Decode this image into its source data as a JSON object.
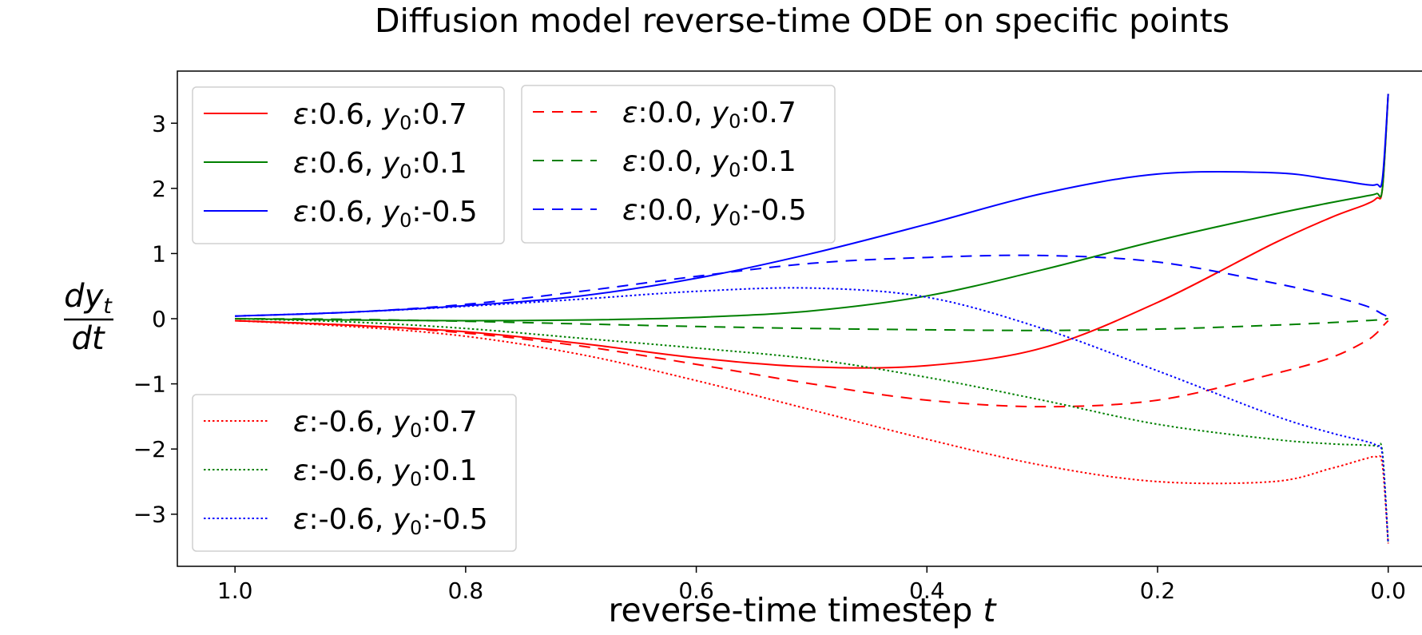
{
  "chart_data": {
    "type": "line",
    "title": "Diffusion model reverse-time ODE on specific points",
    "xlabel": "reverse-time timestep t",
    "ylabel": "dy_t / dt",
    "xlim": [
      1.05,
      -0.03
    ],
    "ylim": [
      -3.8,
      3.8
    ],
    "x_reversed": true,
    "grid": false,
    "xticks": [
      1.0,
      0.8,
      0.6,
      0.4,
      0.2,
      0.0
    ],
    "xtick_labels": [
      "1.0",
      "0.8",
      "0.6",
      "0.4",
      "0.2",
      "0.0"
    ],
    "yticks": [
      3,
      2,
      1,
      0,
      -1,
      -2,
      -3
    ],
    "ytick_labels": [
      "3",
      "2",
      "1",
      "0",
      "−1",
      "−2",
      "−3"
    ],
    "x": [
      1.0,
      0.9,
      0.8,
      0.7,
      0.6,
      0.5,
      0.4,
      0.3,
      0.2,
      0.1,
      0.05,
      0.02,
      0.01,
      0.005,
      0.0
    ],
    "legends": [
      {
        "placement": "upper-left",
        "entries": [
          0,
          1,
          2
        ]
      },
      {
        "placement": "upper-center",
        "entries": [
          3,
          4,
          5
        ]
      },
      {
        "placement": "lower-left",
        "entries": [
          6,
          7,
          8
        ]
      }
    ],
    "series": [
      {
        "name": "ε:0.6, y0:0.7",
        "eps": "0.6",
        "y0": "0.7",
        "color": "#ff0000",
        "linestyle": "solid",
        "values": [
          -0.03,
          -0.1,
          -0.2,
          -0.38,
          -0.6,
          -0.74,
          -0.72,
          -0.45,
          0.25,
          1.15,
          1.55,
          1.75,
          1.85,
          2.0,
          3.45
        ]
      },
      {
        "name": "ε:0.6, y0:0.1",
        "eps": "0.6",
        "y0": "0.1",
        "color": "#008000",
        "linestyle": "solid",
        "values": [
          0.0,
          -0.02,
          -0.03,
          -0.02,
          0.02,
          0.12,
          0.35,
          0.75,
          1.2,
          1.6,
          1.78,
          1.88,
          1.92,
          2.0,
          3.45
        ]
      },
      {
        "name": "ε:0.6, y0:-0.5",
        "eps": "0.6",
        "y0": "-0.5",
        "color": "#0000ff",
        "linestyle": "solid",
        "values": [
          0.04,
          0.1,
          0.2,
          0.35,
          0.62,
          1.0,
          1.45,
          1.92,
          2.22,
          2.24,
          2.14,
          2.06,
          2.06,
          2.15,
          3.45
        ]
      },
      {
        "name": "ε:0.0, y0:0.7",
        "eps": "0.0",
        "y0": "0.7",
        "color": "#ff0000",
        "linestyle": "dashed",
        "values": [
          -0.03,
          -0.1,
          -0.22,
          -0.42,
          -0.7,
          -1.0,
          -1.25,
          -1.35,
          -1.25,
          -0.85,
          -0.6,
          -0.35,
          -0.22,
          -0.12,
          -0.03
        ]
      },
      {
        "name": "ε:0.0, y0:0.1",
        "eps": "0.0",
        "y0": "0.1",
        "color": "#008000",
        "linestyle": "dashed",
        "values": [
          0.0,
          -0.01,
          -0.04,
          -0.08,
          -0.12,
          -0.15,
          -0.17,
          -0.18,
          -0.16,
          -0.1,
          -0.06,
          -0.03,
          -0.02,
          -0.01,
          0.0
        ]
      },
      {
        "name": "ε:0.0, y0:-0.5",
        "eps": "0.0",
        "y0": "-0.5",
        "color": "#0000ff",
        "linestyle": "dashed",
        "values": [
          0.04,
          0.1,
          0.22,
          0.42,
          0.65,
          0.85,
          0.94,
          0.97,
          0.87,
          0.55,
          0.35,
          0.2,
          0.12,
          0.07,
          0.03
        ]
      },
      {
        "name": "ε:-0.6, y0:0.7",
        "eps": "-0.6",
        "y0": "0.7",
        "color": "#ff0000",
        "linestyle": "dotted",
        "values": [
          -0.03,
          -0.12,
          -0.27,
          -0.55,
          -0.95,
          -1.4,
          -1.85,
          -2.25,
          -2.5,
          -2.5,
          -2.3,
          -2.15,
          -2.12,
          -2.25,
          -3.45
        ]
      },
      {
        "name": "ε:-0.6, y0:0.1",
        "eps": "-0.6",
        "y0": "0.1",
        "color": "#008000",
        "linestyle": "dotted",
        "values": [
          0.0,
          -0.05,
          -0.15,
          -0.3,
          -0.45,
          -0.62,
          -0.9,
          -1.25,
          -1.62,
          -1.85,
          -1.92,
          -1.94,
          -1.96,
          -2.05,
          -3.45
        ]
      },
      {
        "name": "ε:-0.6, y0:-0.5",
        "eps": "-0.6",
        "y0": "-0.5",
        "color": "#0000ff",
        "linestyle": "dotted",
        "values": [
          0.04,
          0.1,
          0.19,
          0.3,
          0.42,
          0.47,
          0.33,
          -0.15,
          -0.8,
          -1.48,
          -1.75,
          -1.88,
          -1.95,
          -2.1,
          -3.45
        ]
      }
    ]
  }
}
